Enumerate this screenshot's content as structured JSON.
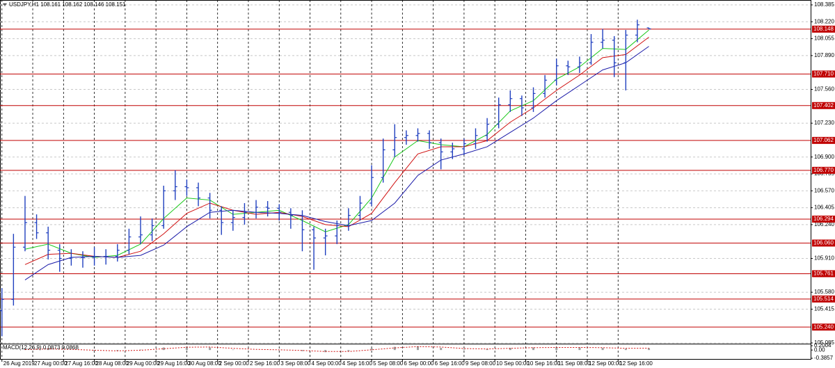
{
  "chart_data": [
    {
      "type": "ohlc",
      "title": "USDJPY,H1  108.161 108.162 108.146 108.151",
      "color": "#1f3fbf",
      "level_color": "#c00000",
      "xlim": [
        -1,
        420
      ],
      "ylim": [
        105.085,
        108.385
      ],
      "xticks": [
        {
          "value": 0,
          "label": "26 Aug 2019"
        },
        {
          "value": 16,
          "label": "27 Aug 00:00"
        },
        {
          "value": 32,
          "label": "27 Aug 16:00"
        },
        {
          "value": 48,
          "label": "28 Aug 08:00"
        },
        {
          "value": 64,
          "label": "29 Aug 00:00"
        },
        {
          "value": 80,
          "label": "29 Aug 16:00"
        },
        {
          "value": 96,
          "label": "30 Aug 08:00"
        },
        {
          "value": 112,
          "label": "2 Sep 00:00"
        },
        {
          "value": 128,
          "label": "2 Sep 16:00"
        },
        {
          "value": 144,
          "label": "3 Sep 08:00"
        },
        {
          "value": 160,
          "label": "4 Sep 00:00"
        },
        {
          "value": 176,
          "label": "4 Sep 16:00"
        },
        {
          "value": 192,
          "label": "5 Sep 08:00"
        },
        {
          "value": 208,
          "label": "6 Sep 00:00"
        },
        {
          "value": 224,
          "label": "6 Sep 16:00"
        },
        {
          "value": 240,
          "label": "9 Sep 08:00"
        },
        {
          "value": 256,
          "label": "10 Sep 00:00"
        },
        {
          "value": 272,
          "label": "10 Sep 16:00"
        },
        {
          "value": 288,
          "label": "11 Sep 08:00"
        },
        {
          "value": 304,
          "label": "12 Sep 00:00"
        },
        {
          "value": 320,
          "label": "12 Sep 16:00"
        }
      ],
      "yticks": [
        108.385,
        {
          "value": 108.22,
          "label": "108.220"
        },
        108.055,
        {
          "value": 107.89,
          "label": "107.890"
        },
        {
          "value": 107.56,
          "label": "107.560"
        },
        {
          "value": 107.23,
          "label": "107.230"
        },
        {
          "value": 106.9,
          "label": "106.900"
        },
        106.735,
        {
          "value": 106.57,
          "label": "106.570"
        },
        106.405,
        {
          "value": 106.24,
          "label": "106.240"
        },
        {
          "value": 105.91,
          "label": "105.910"
        },
        {
          "value": 105.58,
          "label": "105.580"
        },
        105.415,
        105.085
      ],
      "levels": [
        108.148,
        {
          "value": 107.71,
          "label": "107.710"
        },
        107.402,
        107.062,
        {
          "value": 106.77,
          "label": "106.770"
        },
        106.294,
        {
          "value": 106.06,
          "label": "106.060"
        },
        105.761,
        105.514,
        {
          "value": 105.24,
          "label": "105.240"
        }
      ],
      "x": [
        0,
        6,
        12,
        18,
        24,
        30,
        36,
        42,
        48,
        54,
        60,
        66,
        72,
        78,
        84,
        90,
        96,
        102,
        108,
        114,
        120,
        126,
        132,
        138,
        144,
        150,
        156,
        162,
        168,
        174,
        180,
        186,
        192,
        198,
        204,
        210,
        216,
        222,
        228,
        234,
        240,
        246,
        252,
        258,
        264,
        270,
        276,
        282,
        288,
        294,
        300,
        306,
        312,
        318,
        324,
        330,
        336
      ],
      "open": [
        105.4,
        105.51,
        106.02,
        106.26,
        106.16,
        105.99,
        105.91,
        105.92,
        105.92,
        105.93,
        105.93,
        105.99,
        106.12,
        106.14,
        106.23,
        106.57,
        106.61,
        106.6,
        106.5,
        106.38,
        106.26,
        106.31,
        106.36,
        106.41,
        106.4,
        106.36,
        106.33,
        106.19,
        106.11,
        106.13,
        106.23,
        106.33,
        106.45,
        106.7,
        106.97,
        107.09,
        107.11,
        107.13,
        107.04,
        106.95,
        106.98,
        107.03,
        107.11,
        107.22,
        107.41,
        107.47,
        107.38,
        107.52,
        107.65,
        107.79,
        107.78,
        107.82,
        108.02,
        108.04,
        107.82,
        108.09,
        108.161
      ],
      "high": [
        105.62,
        106.15,
        106.52,
        106.34,
        106.22,
        106.05,
        106.0,
        105.98,
        106.02,
        106.0,
        106.05,
        106.2,
        106.32,
        106.3,
        106.62,
        106.77,
        106.68,
        106.65,
        106.55,
        106.42,
        106.38,
        106.45,
        106.48,
        106.47,
        106.44,
        106.4,
        106.38,
        106.22,
        106.2,
        106.28,
        106.4,
        106.52,
        106.82,
        107.08,
        107.22,
        107.16,
        107.18,
        107.16,
        107.08,
        107.04,
        107.08,
        107.18,
        107.28,
        107.48,
        107.55,
        107.5,
        107.58,
        107.7,
        107.86,
        107.84,
        107.88,
        108.1,
        108.15,
        108.08,
        108.14,
        108.24,
        108.162
      ],
      "low": [
        105.15,
        105.45,
        105.98,
        106.1,
        105.9,
        105.78,
        105.84,
        105.82,
        105.84,
        105.85,
        105.88,
        105.95,
        106.05,
        106.08,
        106.2,
        106.48,
        106.52,
        106.42,
        106.3,
        106.14,
        106.18,
        106.24,
        106.3,
        106.32,
        106.28,
        106.2,
        105.98,
        105.8,
        105.94,
        106.05,
        106.18,
        106.28,
        106.42,
        106.65,
        106.9,
        107.02,
        107.05,
        106.98,
        106.78,
        106.88,
        106.92,
        106.98,
        107.05,
        107.18,
        107.34,
        107.3,
        107.34,
        107.48,
        107.6,
        107.7,
        107.72,
        107.8,
        107.96,
        107.68,
        107.55,
        108.02,
        108.146
      ],
      "close": [
        105.51,
        106.02,
        106.26,
        106.16,
        105.99,
        105.91,
        105.92,
        105.92,
        105.93,
        105.93,
        105.99,
        106.12,
        106.14,
        106.23,
        106.57,
        106.61,
        106.6,
        106.5,
        106.38,
        106.26,
        106.31,
        106.36,
        106.41,
        106.4,
        106.36,
        106.33,
        106.19,
        106.11,
        106.13,
        106.23,
        106.33,
        106.45,
        106.7,
        106.97,
        107.09,
        107.11,
        107.13,
        107.04,
        106.95,
        106.98,
        107.03,
        107.11,
        107.22,
        107.41,
        107.47,
        107.38,
        107.52,
        107.65,
        107.79,
        107.78,
        107.82,
        108.02,
        108.04,
        107.82,
        108.09,
        108.19,
        108.151
      ],
      "ma_x": [
        12,
        24,
        36,
        48,
        60,
        72,
        84,
        96,
        108,
        120,
        132,
        144,
        156,
        168,
        180,
        192,
        204,
        216,
        228,
        240,
        252,
        264,
        276,
        288,
        300,
        312,
        324,
        336
      ],
      "moving_averages": [
        {
          "color": "#18c818",
          "values": [
            106.0,
            106.05,
            105.96,
            105.92,
            105.94,
            106.05,
            106.3,
            106.5,
            106.48,
            106.34,
            106.36,
            106.38,
            106.28,
            106.17,
            106.24,
            106.5,
            106.9,
            107.06,
            107.02,
            107.0,
            107.12,
            107.35,
            107.45,
            107.66,
            107.78,
            107.96,
            107.95,
            108.14
          ]
        },
        {
          "color": "#d01010",
          "values": [
            105.85,
            105.95,
            105.96,
            105.93,
            105.92,
            105.98,
            106.15,
            106.35,
            106.45,
            106.38,
            106.34,
            106.36,
            106.32,
            106.24,
            106.22,
            106.35,
            106.65,
            106.93,
            107.0,
            107.0,
            107.06,
            107.24,
            107.38,
            107.55,
            107.7,
            107.87,
            107.9,
            108.07
          ]
        },
        {
          "color": "#1a1aa8",
          "values": [
            105.7,
            105.85,
            105.92,
            105.93,
            105.92,
            105.94,
            106.04,
            106.22,
            106.36,
            106.38,
            106.36,
            106.35,
            106.33,
            106.27,
            106.23,
            106.28,
            106.45,
            106.72,
            106.87,
            106.93,
            107.0,
            107.14,
            107.28,
            107.45,
            107.6,
            107.75,
            107.82,
            107.98
          ]
        }
      ]
    },
    {
      "type": "macd",
      "title": "MACD(12,26,9) 0.0873 0.0868",
      "ylim": [
        -0.3857,
        0.2004
      ],
      "yticks": [
        0.2004,
        {
          "value": 0,
          "label": "0.00"
        },
        -0.3857
      ],
      "x": [
        12,
        24,
        36,
        48,
        60,
        72,
        84,
        96,
        108,
        120,
        132,
        144,
        156,
        168,
        180,
        192,
        204,
        216,
        228,
        240,
        252,
        264,
        276,
        288,
        300,
        312,
        324,
        336
      ],
      "histogram": {
        "color": "#a0a0a0",
        "values": [
          0.05,
          0.06,
          0.0,
          -0.05,
          -0.04,
          0.02,
          0.12,
          0.17,
          0.12,
          0.02,
          0.0,
          0.01,
          -0.05,
          -0.1,
          -0.05,
          0.08,
          0.15,
          0.18,
          0.1,
          0.03,
          0.05,
          0.1,
          0.12,
          0.13,
          0.12,
          0.1,
          0.06,
          0.0873
        ]
      },
      "signal": {
        "color": "#d01010",
        "values": [
          0.02,
          0.05,
          0.03,
          -0.01,
          -0.04,
          -0.01,
          0.06,
          0.13,
          0.14,
          0.08,
          0.03,
          0.01,
          -0.02,
          -0.07,
          -0.07,
          0.01,
          0.1,
          0.16,
          0.14,
          0.07,
          0.05,
          0.08,
          0.11,
          0.12,
          0.12,
          0.11,
          0.08,
          0.0868
        ]
      }
    }
  ]
}
